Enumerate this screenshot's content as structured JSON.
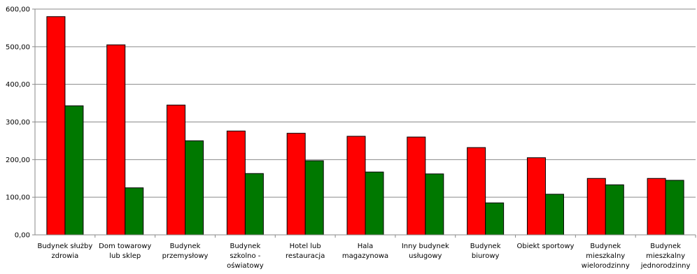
{
  "chart_data": {
    "type": "bar",
    "categories": [
      [
        "Budynek służby",
        "zdrowia"
      ],
      [
        "Dom towarowy",
        "lub sklep"
      ],
      [
        "Budynek",
        "przemysłowy"
      ],
      [
        "Budynek",
        "szkolno -",
        "oświatowy"
      ],
      [
        "Hotel lub",
        "restauracja"
      ],
      [
        "Hala",
        "magazynowa"
      ],
      [
        "Inny budynek",
        "usługowy"
      ],
      [
        "Budynek",
        "biurowy"
      ],
      [
        "Obiekt sportowy"
      ],
      [
        "Budynek",
        "mieszkalny",
        "wielorodzinny"
      ],
      [
        "Budynek",
        "mieszkalny",
        "jednorodzinny"
      ]
    ],
    "series": [
      {
        "values": [
          580,
          505,
          345,
          276,
          270,
          262,
          260,
          232,
          205,
          150,
          150
        ],
        "color": "#ff0000"
      },
      {
        "values": [
          343,
          125,
          250,
          163,
          197,
          167,
          162,
          85,
          108,
          133,
          145
        ],
        "color": "#007800"
      }
    ],
    "ylim": [
      0,
      600
    ],
    "yticks": [
      "0,00",
      "100,00",
      "200,00",
      "300,00",
      "400,00",
      "500,00",
      "600,00"
    ],
    "grid": true,
    "xlabel": "",
    "ylabel": "",
    "title": ""
  }
}
